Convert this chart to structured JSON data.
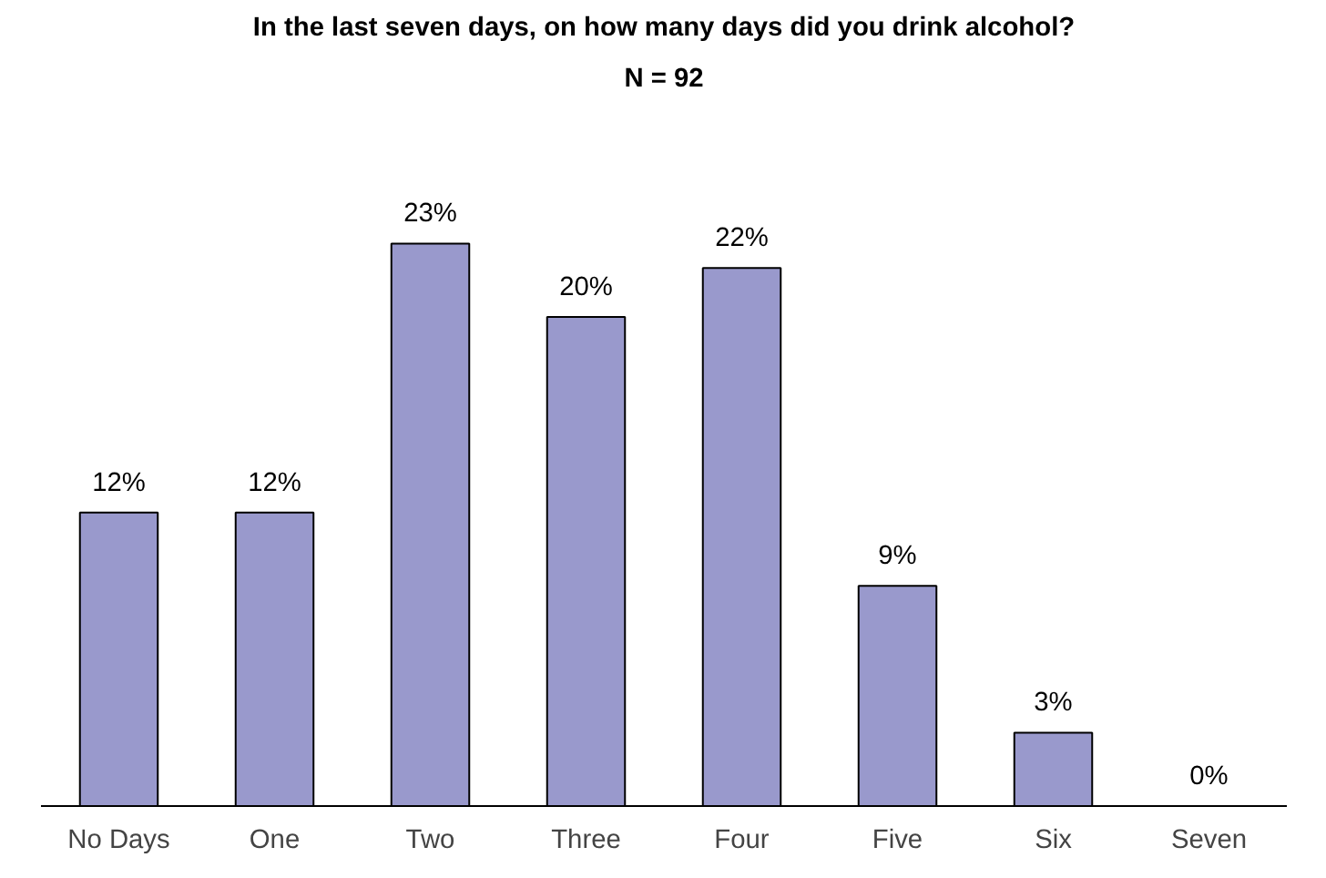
{
  "chart_data": {
    "type": "bar",
    "title": "In the last seven days, on how many days did you drink alcohol?",
    "subtitle": "N = 92",
    "categories": [
      "No Days",
      "One",
      "Two",
      "Three",
      "Four",
      "Five",
      "Six",
      "Seven"
    ],
    "values": [
      12,
      12,
      23,
      20,
      22,
      9,
      3,
      0
    ],
    "value_labels": [
      "12%",
      "12%",
      "23%",
      "20%",
      "22%",
      "9%",
      "3%",
      "0%"
    ],
    "color": "#9999cc",
    "grid": false
  }
}
